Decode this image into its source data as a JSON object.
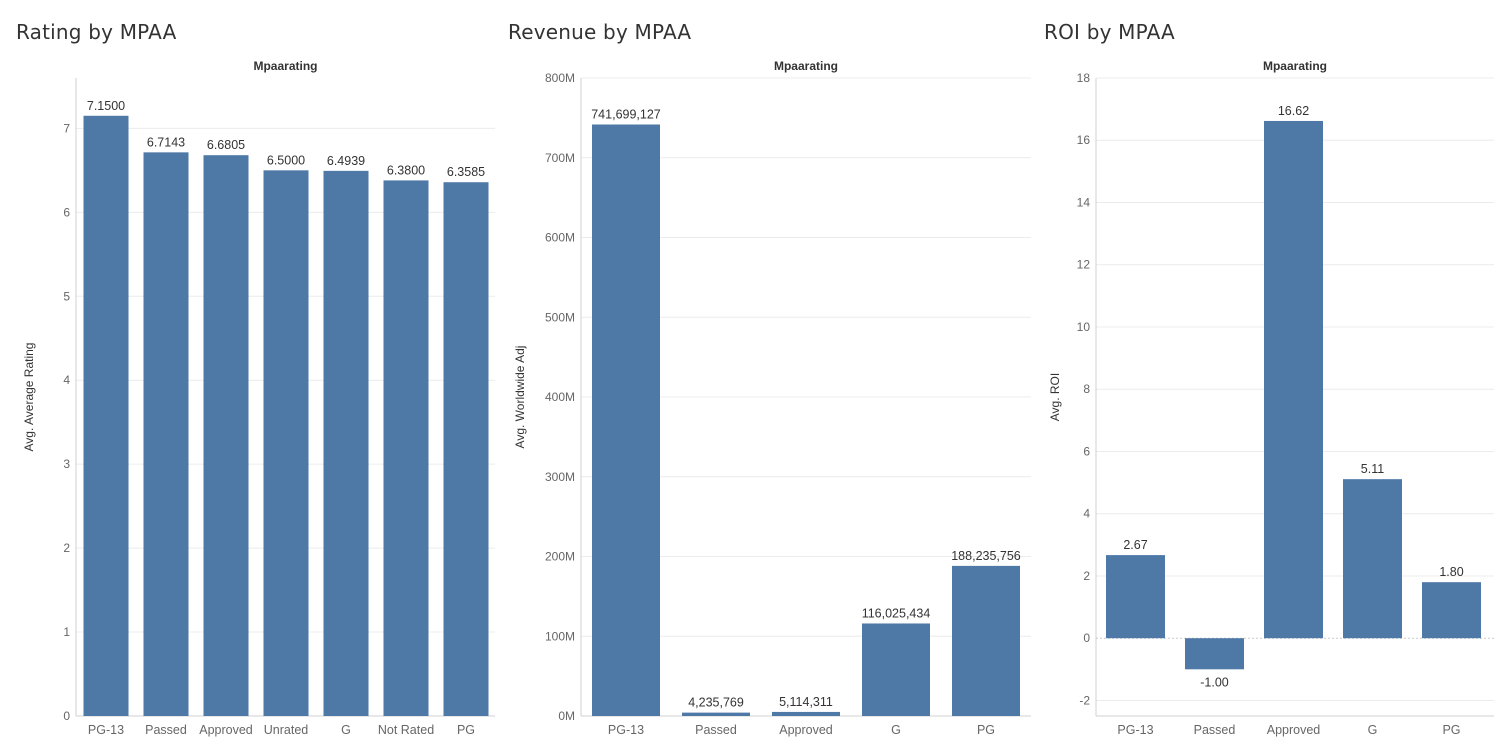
{
  "chart_data": [
    {
      "type": "bar",
      "title": "Rating by MPAA",
      "column_header": "Mpaarating",
      "ylabel": "Avg. Average Rating",
      "categories": [
        "PG-13",
        "Passed",
        "Approved",
        "Unrated",
        "G",
        "Not Rated",
        "PG"
      ],
      "values": [
        7.15,
        6.7143,
        6.6805,
        6.5,
        6.4939,
        6.38,
        6.3585
      ],
      "value_labels": [
        "7.1500",
        "6.7143",
        "6.6805",
        "6.5000",
        "6.4939",
        "6.3800",
        "6.3585"
      ],
      "ylim": [
        0,
        7.6
      ],
      "yticks": [
        0,
        1,
        2,
        3,
        4,
        5,
        6,
        7
      ],
      "ytick_labels": [
        "0",
        "1",
        "2",
        "3",
        "4",
        "5",
        "6",
        "7"
      ],
      "grid": true,
      "bar_color": "#4e79a7"
    },
    {
      "type": "bar",
      "title": "Revenue by MPAA",
      "column_header": "Mpaarating",
      "ylabel": "Avg. Worldwide Adj",
      "categories": [
        "PG-13",
        "Passed",
        "Approved",
        "G",
        "PG"
      ],
      "values": [
        741699127,
        4235769,
        5114311,
        116025434,
        188235756
      ],
      "value_labels": [
        "741,699,127",
        "4,235,769",
        "5,114,311",
        "116,025,434",
        "188,235,756"
      ],
      "ylim": [
        0,
        800000000
      ],
      "yticks": [
        0,
        100000000,
        200000000,
        300000000,
        400000000,
        500000000,
        600000000,
        700000000,
        800000000
      ],
      "ytick_labels": [
        "0M",
        "100M",
        "200M",
        "300M",
        "400M",
        "500M",
        "600M",
        "700M",
        "800M"
      ],
      "grid": true,
      "bar_color": "#4e79a7"
    },
    {
      "type": "bar",
      "title": "ROI by MPAA",
      "column_header": "Mpaarating",
      "ylabel": "Avg. ROI",
      "categories": [
        "PG-13",
        "Passed",
        "Approved",
        "G",
        "PG"
      ],
      "values": [
        2.67,
        -1.0,
        16.62,
        5.11,
        1.8
      ],
      "value_labels": [
        "2.67",
        "-1.00",
        "16.62",
        "5.11",
        "1.80"
      ],
      "ylim": [
        -2.5,
        18
      ],
      "yticks": [
        -2,
        0,
        2,
        4,
        6,
        8,
        10,
        12,
        14,
        16,
        18
      ],
      "ytick_labels": [
        "-2",
        "0",
        "2",
        "4",
        "6",
        "8",
        "10",
        "12",
        "14",
        "16",
        "18"
      ],
      "grid": true,
      "bar_color": "#4e79a7"
    }
  ]
}
